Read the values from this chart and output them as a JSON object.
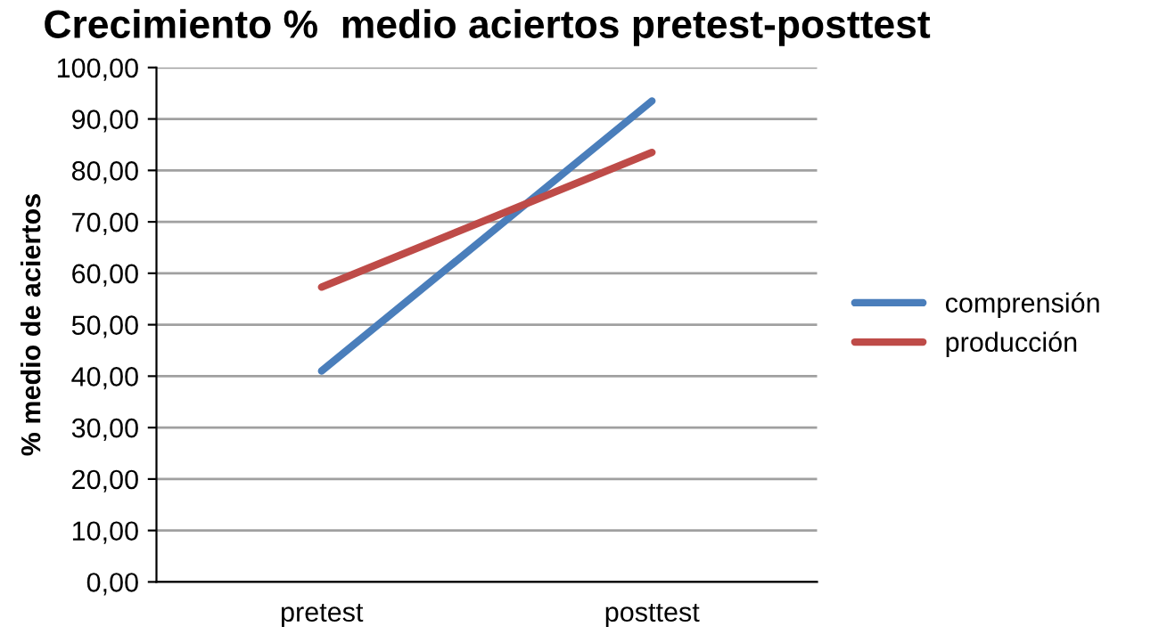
{
  "chart_data": {
    "type": "line",
    "title": "Crecimiento %  medio aciertos pretest-posttest",
    "ylabel": "% medio de aciertos",
    "categories": [
      "pretest",
      "posttest"
    ],
    "series": [
      {
        "name": "comprensión",
        "color": "#4a7ebb",
        "values": [
          41.0,
          93.5
        ]
      },
      {
        "name": "producción",
        "color": "#be4b48",
        "values": [
          57.3,
          83.5
        ]
      }
    ],
    "ylim": [
      0,
      100
    ],
    "yticks": [
      {
        "value": 0,
        "label": "0,00"
      },
      {
        "value": 10,
        "label": "10,00"
      },
      {
        "value": 20,
        "label": "20,00"
      },
      {
        "value": 30,
        "label": "30,00"
      },
      {
        "value": 40,
        "label": "40,00"
      },
      {
        "value": 50,
        "label": "50,00"
      },
      {
        "value": 60,
        "label": "60,00"
      },
      {
        "value": 70,
        "label": "70,00"
      },
      {
        "value": 80,
        "label": "80,00"
      },
      {
        "value": 90,
        "label": "90,00"
      },
      {
        "value": 100,
        "label": "100,00"
      }
    ],
    "grid": "y",
    "legend": "right",
    "marker": "none",
    "line_style": "solid"
  }
}
